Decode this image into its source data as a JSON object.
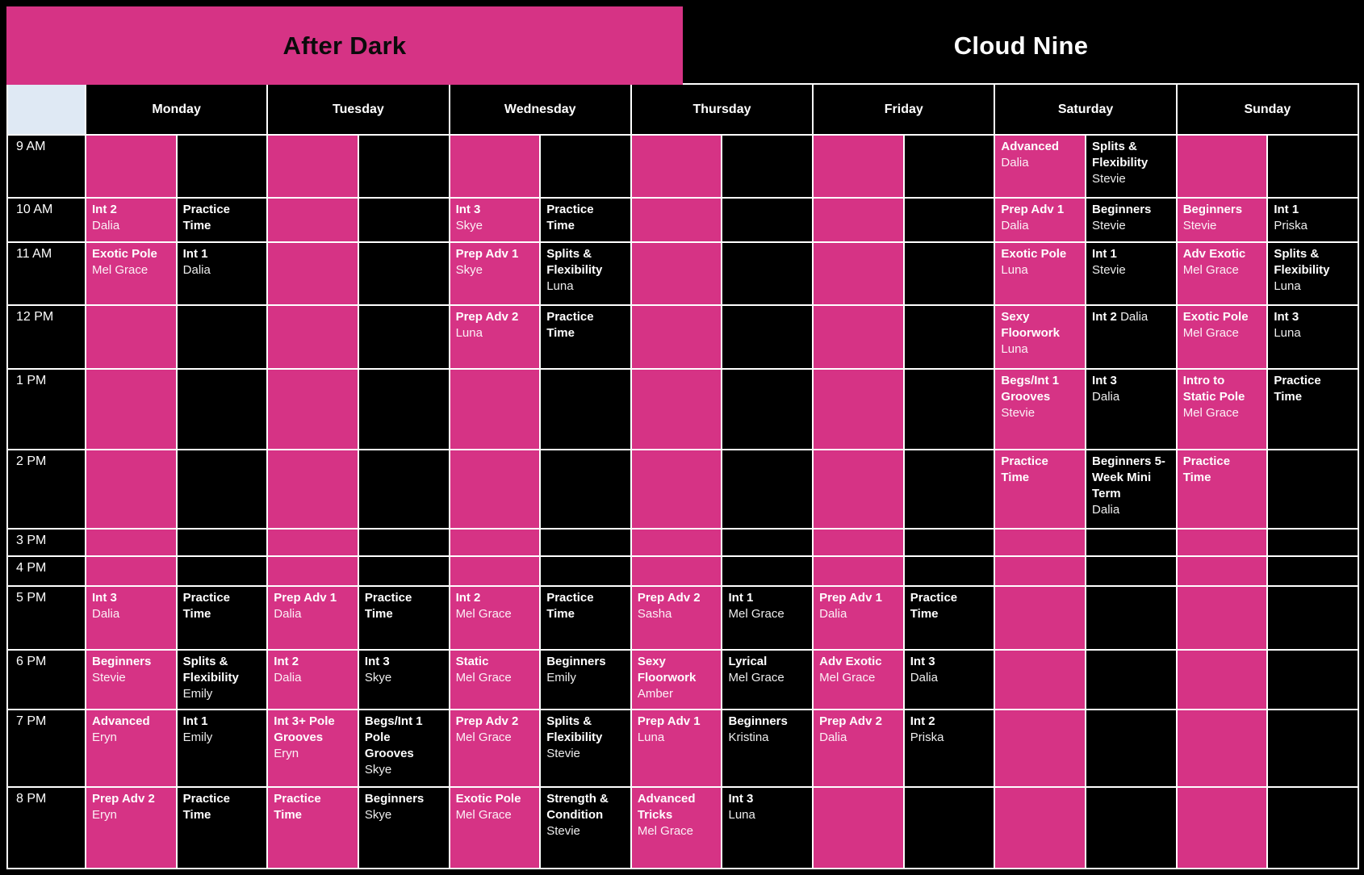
{
  "studios": [
    {
      "name": "After Dark"
    },
    {
      "name": "Cloud Nine"
    }
  ],
  "colors": {
    "pink": "#d63385",
    "black": "#000000",
    "corner_cell": "#dfe9f4",
    "gridline": "#ffffff"
  },
  "days": [
    "Monday",
    "Tuesday",
    "Wednesday",
    "Thursday",
    "Friday",
    "Saturday",
    "Sunday"
  ],
  "rows": [
    {
      "time": "9 AM",
      "cells": [
        [
          null,
          null
        ],
        [
          null,
          null
        ],
        [
          null,
          null
        ],
        [
          null,
          null
        ],
        [
          null,
          null
        ],
        [
          {
            "cls": "Advanced",
            "who": "Dalia"
          },
          {
            "cls": "Splits & Flexibility",
            "who": "Stevie"
          }
        ],
        [
          null,
          null
        ]
      ]
    },
    {
      "time": "10 AM",
      "cells": [
        [
          {
            "cls": "Int 2",
            "who": "Dalia"
          },
          {
            "cls": "Practice Time"
          }
        ],
        [
          null,
          null
        ],
        [
          {
            "cls": "Int 3",
            "who": "Skye"
          },
          {
            "cls": "Practice Time"
          }
        ],
        [
          null,
          null
        ],
        [
          null,
          null
        ],
        [
          {
            "cls": "Prep Adv 1",
            "who": "Dalia"
          },
          {
            "cls": "Beginners",
            "who": "Stevie"
          }
        ],
        [
          {
            "cls": "Beginners",
            "who": "Stevie"
          },
          {
            "cls": "Int 1",
            "who": "Priska"
          }
        ]
      ]
    },
    {
      "time": "11 AM",
      "cells": [
        [
          {
            "cls": "Exotic Pole",
            "who": "Mel Grace"
          },
          {
            "cls": "Int 1",
            "who": "Dalia"
          }
        ],
        [
          null,
          null
        ],
        [
          {
            "cls": "Prep Adv 1",
            "who": "Skye"
          },
          {
            "cls": "Splits & Flexibility",
            "who": "Luna"
          }
        ],
        [
          null,
          null
        ],
        [
          null,
          null
        ],
        [
          {
            "cls": "Exotic Pole",
            "who": "Luna"
          },
          {
            "cls": "Int 1",
            "who": "Stevie"
          }
        ],
        [
          {
            "cls": "Adv Exotic",
            "who": "Mel Grace"
          },
          {
            "cls": "Splits & Flexibility",
            "who": "Luna"
          }
        ]
      ]
    },
    {
      "time": "12 PM",
      "cells": [
        [
          null,
          null
        ],
        [
          null,
          null
        ],
        [
          {
            "cls": "Prep Adv 2",
            "who": "Luna"
          },
          {
            "cls": "Practice Time"
          }
        ],
        [
          null,
          null
        ],
        [
          null,
          null
        ],
        [
          {
            "cls": "Sexy Floorwork",
            "who": "Luna"
          },
          {
            "cls": "Int 2",
            "who": "Dalia",
            "inline": true
          }
        ],
        [
          {
            "cls": "Exotic Pole",
            "who": "Mel Grace"
          },
          {
            "cls": "Int 3",
            "who": "Luna"
          }
        ]
      ]
    },
    {
      "time": "1 PM",
      "cells": [
        [
          null,
          null
        ],
        [
          null,
          null
        ],
        [
          null,
          null
        ],
        [
          null,
          null
        ],
        [
          null,
          null
        ],
        [
          {
            "cls": "Begs/Int 1 Grooves",
            "who": "Stevie"
          },
          {
            "cls": "Int 3",
            "who": "Dalia"
          }
        ],
        [
          {
            "cls": "Intro to Static Pole",
            "who": "Mel Grace"
          },
          {
            "cls": "Practice Time"
          }
        ]
      ]
    },
    {
      "time": "2 PM",
      "cells": [
        [
          null,
          null
        ],
        [
          null,
          null
        ],
        [
          null,
          null
        ],
        [
          null,
          null
        ],
        [
          null,
          null
        ],
        [
          {
            "cls": "Practice Time"
          },
          {
            "cls": "Beginners 5-Week Mini Term",
            "who": "Dalia"
          }
        ],
        [
          {
            "cls": "Practice Time"
          },
          null
        ]
      ]
    },
    {
      "time": "3 PM",
      "cells": [
        [
          null,
          null
        ],
        [
          null,
          null
        ],
        [
          null,
          null
        ],
        [
          null,
          null
        ],
        [
          null,
          null
        ],
        [
          null,
          null
        ],
        [
          null,
          null
        ]
      ]
    },
    {
      "time": "4 PM",
      "cells": [
        [
          null,
          null
        ],
        [
          null,
          null
        ],
        [
          null,
          null
        ],
        [
          null,
          null
        ],
        [
          null,
          null
        ],
        [
          null,
          null
        ],
        [
          null,
          null
        ]
      ]
    },
    {
      "time": "5 PM",
      "cells": [
        [
          {
            "cls": "Int 3",
            "who": "Dalia"
          },
          {
            "cls": "Practice Time"
          }
        ],
        [
          {
            "cls": "Prep Adv 1",
            "who": "Dalia"
          },
          {
            "cls": "Practice Time"
          }
        ],
        [
          {
            "cls": "Int 2",
            "who": "Mel Grace"
          },
          {
            "cls": "Practice Time"
          }
        ],
        [
          {
            "cls": "Prep Adv 2",
            "who": "Sasha"
          },
          {
            "cls": "Int 1",
            "who": "Mel Grace"
          }
        ],
        [
          {
            "cls": "Prep Adv 1",
            "who": "Dalia"
          },
          {
            "cls": "Practice Time"
          }
        ],
        [
          null,
          null
        ],
        [
          null,
          null
        ]
      ]
    },
    {
      "time": "6 PM",
      "cells": [
        [
          {
            "cls": "Beginners",
            "who": "Stevie"
          },
          {
            "cls": "Splits & Flexibility",
            "who": "Emily"
          }
        ],
        [
          {
            "cls": "Int 2",
            "who": "Dalia"
          },
          {
            "cls": "Int 3",
            "who": "Skye"
          }
        ],
        [
          {
            "cls": "Static",
            "who": "Mel Grace"
          },
          {
            "cls": "Beginners",
            "who": "Emily"
          }
        ],
        [
          {
            "cls": "Sexy Floorwork",
            "who": "Amber"
          },
          {
            "cls": "Lyrical",
            "who": "Mel Grace"
          }
        ],
        [
          {
            "cls": "Adv Exotic",
            "who": "Mel Grace"
          },
          {
            "cls": "Int 3",
            "who": "Dalia"
          }
        ],
        [
          null,
          null
        ],
        [
          null,
          null
        ]
      ]
    },
    {
      "time": "7 PM",
      "cells": [
        [
          {
            "cls": "Advanced",
            "who": "Eryn"
          },
          {
            "cls": "Int 1",
            "who": "Emily"
          }
        ],
        [
          {
            "cls": "Int 3+ Pole Grooves",
            "who": "Eryn"
          },
          {
            "cls": "Begs/Int 1 Pole Grooves",
            "who": "Skye"
          }
        ],
        [
          {
            "cls": "Prep Adv 2",
            "who": "Mel Grace"
          },
          {
            "cls": "Splits & Flexibility",
            "who": "Stevie"
          }
        ],
        [
          {
            "cls": "Prep Adv 1",
            "who": "Luna"
          },
          {
            "cls": "Beginners",
            "who": "Kristina"
          }
        ],
        [
          {
            "cls": "Prep Adv 2",
            "who": "Dalia"
          },
          {
            "cls": "Int 2",
            "who": "Priska"
          }
        ],
        [
          null,
          null
        ],
        [
          null,
          null
        ]
      ]
    },
    {
      "time": "8 PM",
      "cells": [
        [
          {
            "cls": "Prep Adv 2",
            "who": "Eryn"
          },
          {
            "cls": "Practice Time"
          }
        ],
        [
          {
            "cls": "Practice Time"
          },
          {
            "cls": "Beginners",
            "who": "Skye"
          }
        ],
        [
          {
            "cls": "Exotic Pole",
            "who": "Mel Grace"
          },
          {
            "cls": "Strength & Condition",
            "who": "Stevie"
          }
        ],
        [
          {
            "cls": "Advanced Tricks",
            "who": "Mel Grace"
          },
          {
            "cls": "Int 3",
            "who": "Luna"
          }
        ],
        [
          null,
          null
        ],
        [
          null,
          null
        ],
        [
          null,
          null
        ]
      ]
    }
  ]
}
